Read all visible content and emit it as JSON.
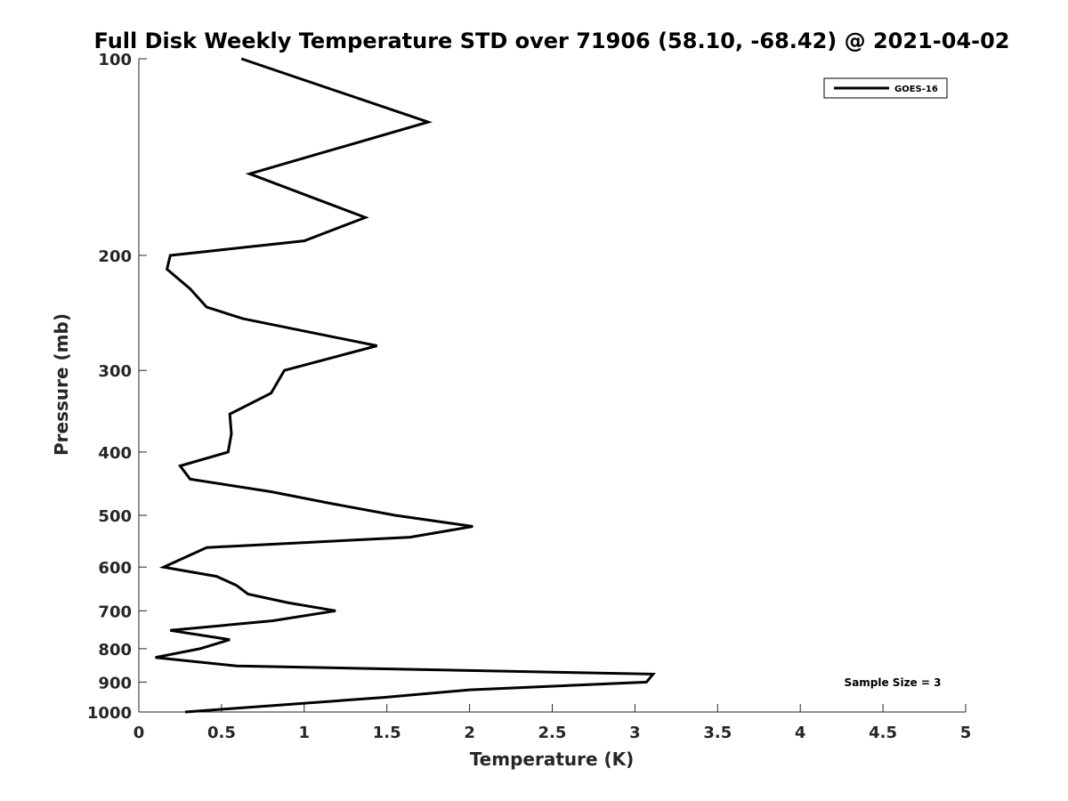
{
  "chart_data": {
    "type": "line",
    "title": "Full Disk Weekly Temperature STD over 71906 (58.10, -68.42) @ 2021-04-02",
    "xlabel": "Temperature (K)",
    "ylabel": "Pressure (mb)",
    "xlim": [
      0,
      5
    ],
    "ylim": [
      100,
      1000
    ],
    "yscale": "log",
    "y_reversed": true,
    "xticks": [
      0,
      0.5,
      1,
      1.5,
      2,
      2.5,
      3,
      3.5,
      4,
      4.5,
      5
    ],
    "xtick_labels": [
      "0",
      "0.5",
      "1",
      "1.5",
      "2",
      "2.5",
      "3",
      "3.5",
      "4",
      "4.5",
      "5"
    ],
    "yticks": [
      100,
      200,
      300,
      400,
      500,
      600,
      700,
      800,
      900,
      1000
    ],
    "ytick_labels": [
      "100",
      "200",
      "300",
      "400",
      "500",
      "600",
      "700",
      "800",
      "900",
      "1000"
    ],
    "legend_position": "top-right",
    "series": [
      {
        "name": "GOES-16",
        "color": "#000000",
        "x": [
          0.62,
          1.75,
          0.67,
          1.37,
          1.0,
          0.19,
          0.17,
          0.31,
          0.41,
          0.63,
          1.44,
          0.88,
          0.8,
          0.55,
          0.56,
          0.54,
          0.25,
          0.31,
          0.8,
          1.17,
          1.55,
          2.02,
          1.64,
          0.41,
          0.15,
          0.47,
          0.59,
          0.66,
          0.9,
          1.19,
          0.81,
          0.19,
          0.55,
          0.37,
          0.1,
          0.59,
          3.11,
          3.07,
          2.0,
          1.48,
          0.28
        ],
        "y": [
          100,
          125,
          150,
          175,
          190,
          200,
          210,
          225,
          240,
          250,
          275,
          300,
          325,
          350,
          375,
          400,
          420,
          440,
          460,
          480,
          500,
          520,
          540,
          560,
          600,
          620,
          640,
          660,
          680,
          700,
          725,
          750,
          775,
          800,
          825,
          850,
          875,
          900,
          925,
          950,
          1000
        ]
      }
    ],
    "annotation": "Sample Size = 3"
  }
}
